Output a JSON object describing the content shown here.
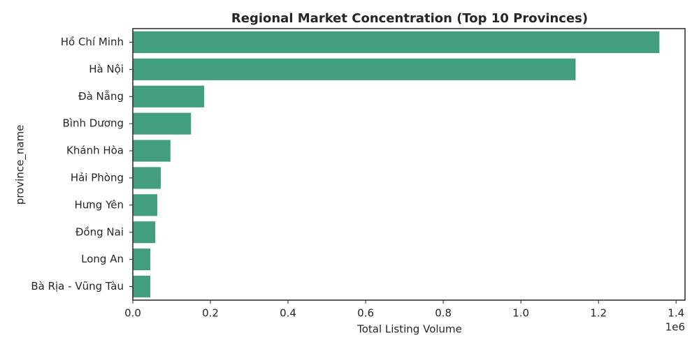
{
  "chart_data": {
    "type": "barh",
    "title": "Regional Market Concentration (Top 10 Provinces)",
    "x_label": "Total Listing Volume",
    "y_label": "province_name",
    "x_offset_label": "1e6",
    "categories": [
      "Hồ Chí Minh",
      "Hà Nội",
      "Đà Nẵng",
      "Bình Dương",
      "Khánh Hòa",
      "Hải Phòng",
      "Hưng Yên",
      "Đồng Nai",
      "Long An",
      "Bà Rịa - Vũng Tàu"
    ],
    "values": [
      1.357,
      1.141,
      0.184,
      0.15,
      0.097,
      0.072,
      0.063,
      0.058,
      0.045,
      0.045
    ],
    "color": "#439e7f",
    "xlim": [
      0,
      1.423
    ],
    "xticks": [
      {
        "value": 0,
        "label": "0.0"
      },
      0.2,
      0.4,
      0.6,
      0.8,
      {
        "value": 1,
        "label": "1.0"
      },
      1.2,
      1.4
    ],
    "grid": false
  }
}
